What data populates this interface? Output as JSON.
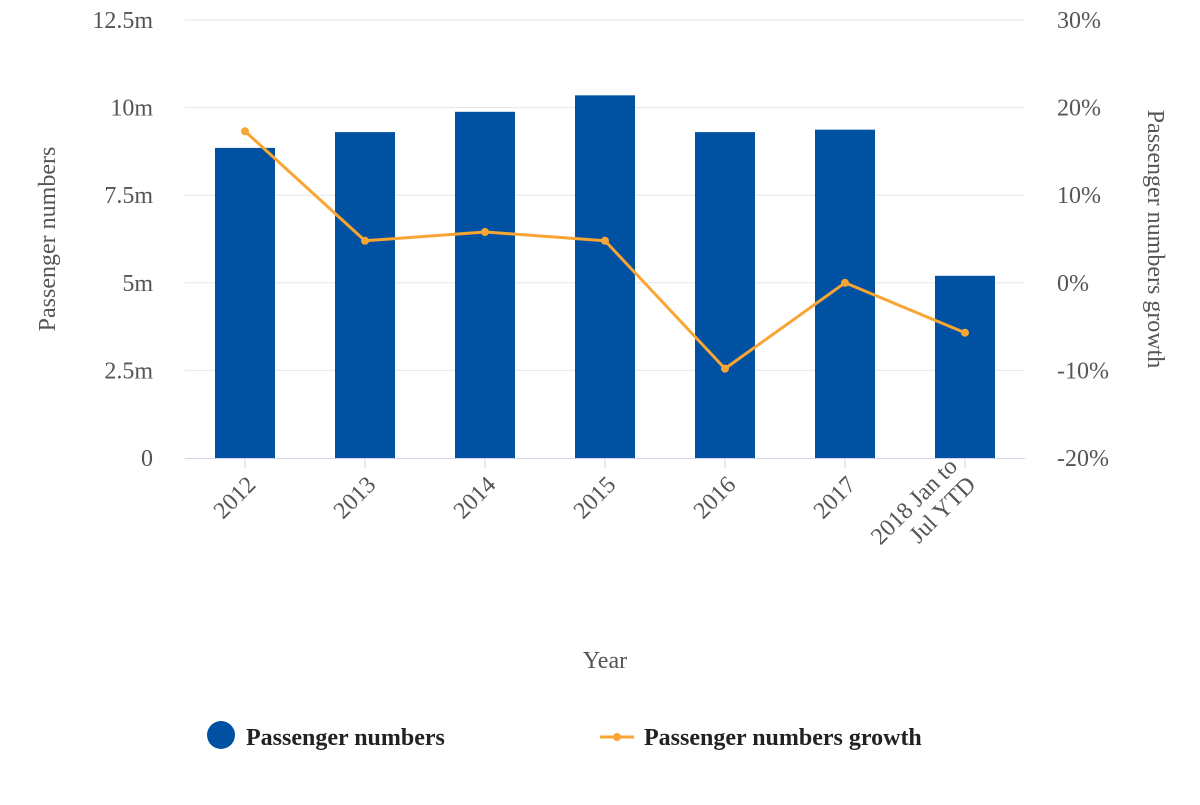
{
  "chart_data": {
    "type": "bar",
    "xlabel": "Year",
    "categories": [
      "2012",
      "2013",
      "2014",
      "2015",
      "2016",
      "2017",
      "2018 Jan to Jul YTD"
    ],
    "category_lines": [
      [
        "2012"
      ],
      [
        "2013"
      ],
      [
        "2014"
      ],
      [
        "2015"
      ],
      [
        "2016"
      ],
      [
        "2017"
      ],
      [
        "2018 Jan to",
        "Jul YTD"
      ]
    ],
    "y_left": {
      "label": "Passenger numbers",
      "ylim": [
        0,
        12500000
      ],
      "ticks": [
        0,
        2500000,
        5000000,
        7500000,
        10000000,
        12500000
      ],
      "tick_labels": [
        "0",
        "2.5m",
        "5m",
        "7.5m",
        "10m",
        "12.5m"
      ]
    },
    "y_right": {
      "label": "Passenger numbers growth",
      "ylim": [
        -20,
        30
      ],
      "ticks": [
        -20,
        -10,
        0,
        10,
        20,
        30
      ],
      "tick_labels": [
        "-20%",
        "-10%",
        "0%",
        "10%",
        "20%",
        "30%"
      ]
    },
    "series": [
      {
        "name": "Passenger numbers",
        "type": "bar",
        "axis": "left",
        "color": "#0051a2",
        "values": [
          8850000,
          9300000,
          9880000,
          10350000,
          9300000,
          9370000,
          5200000
        ]
      },
      {
        "name": "Passenger numbers growth",
        "type": "line",
        "axis": "right",
        "color": "#f9a533",
        "values": [
          17.3,
          4.8,
          5.8,
          4.8,
          -9.8,
          0.0,
          -5.7
        ]
      }
    ],
    "grid": true,
    "legend_position": "bottom"
  }
}
